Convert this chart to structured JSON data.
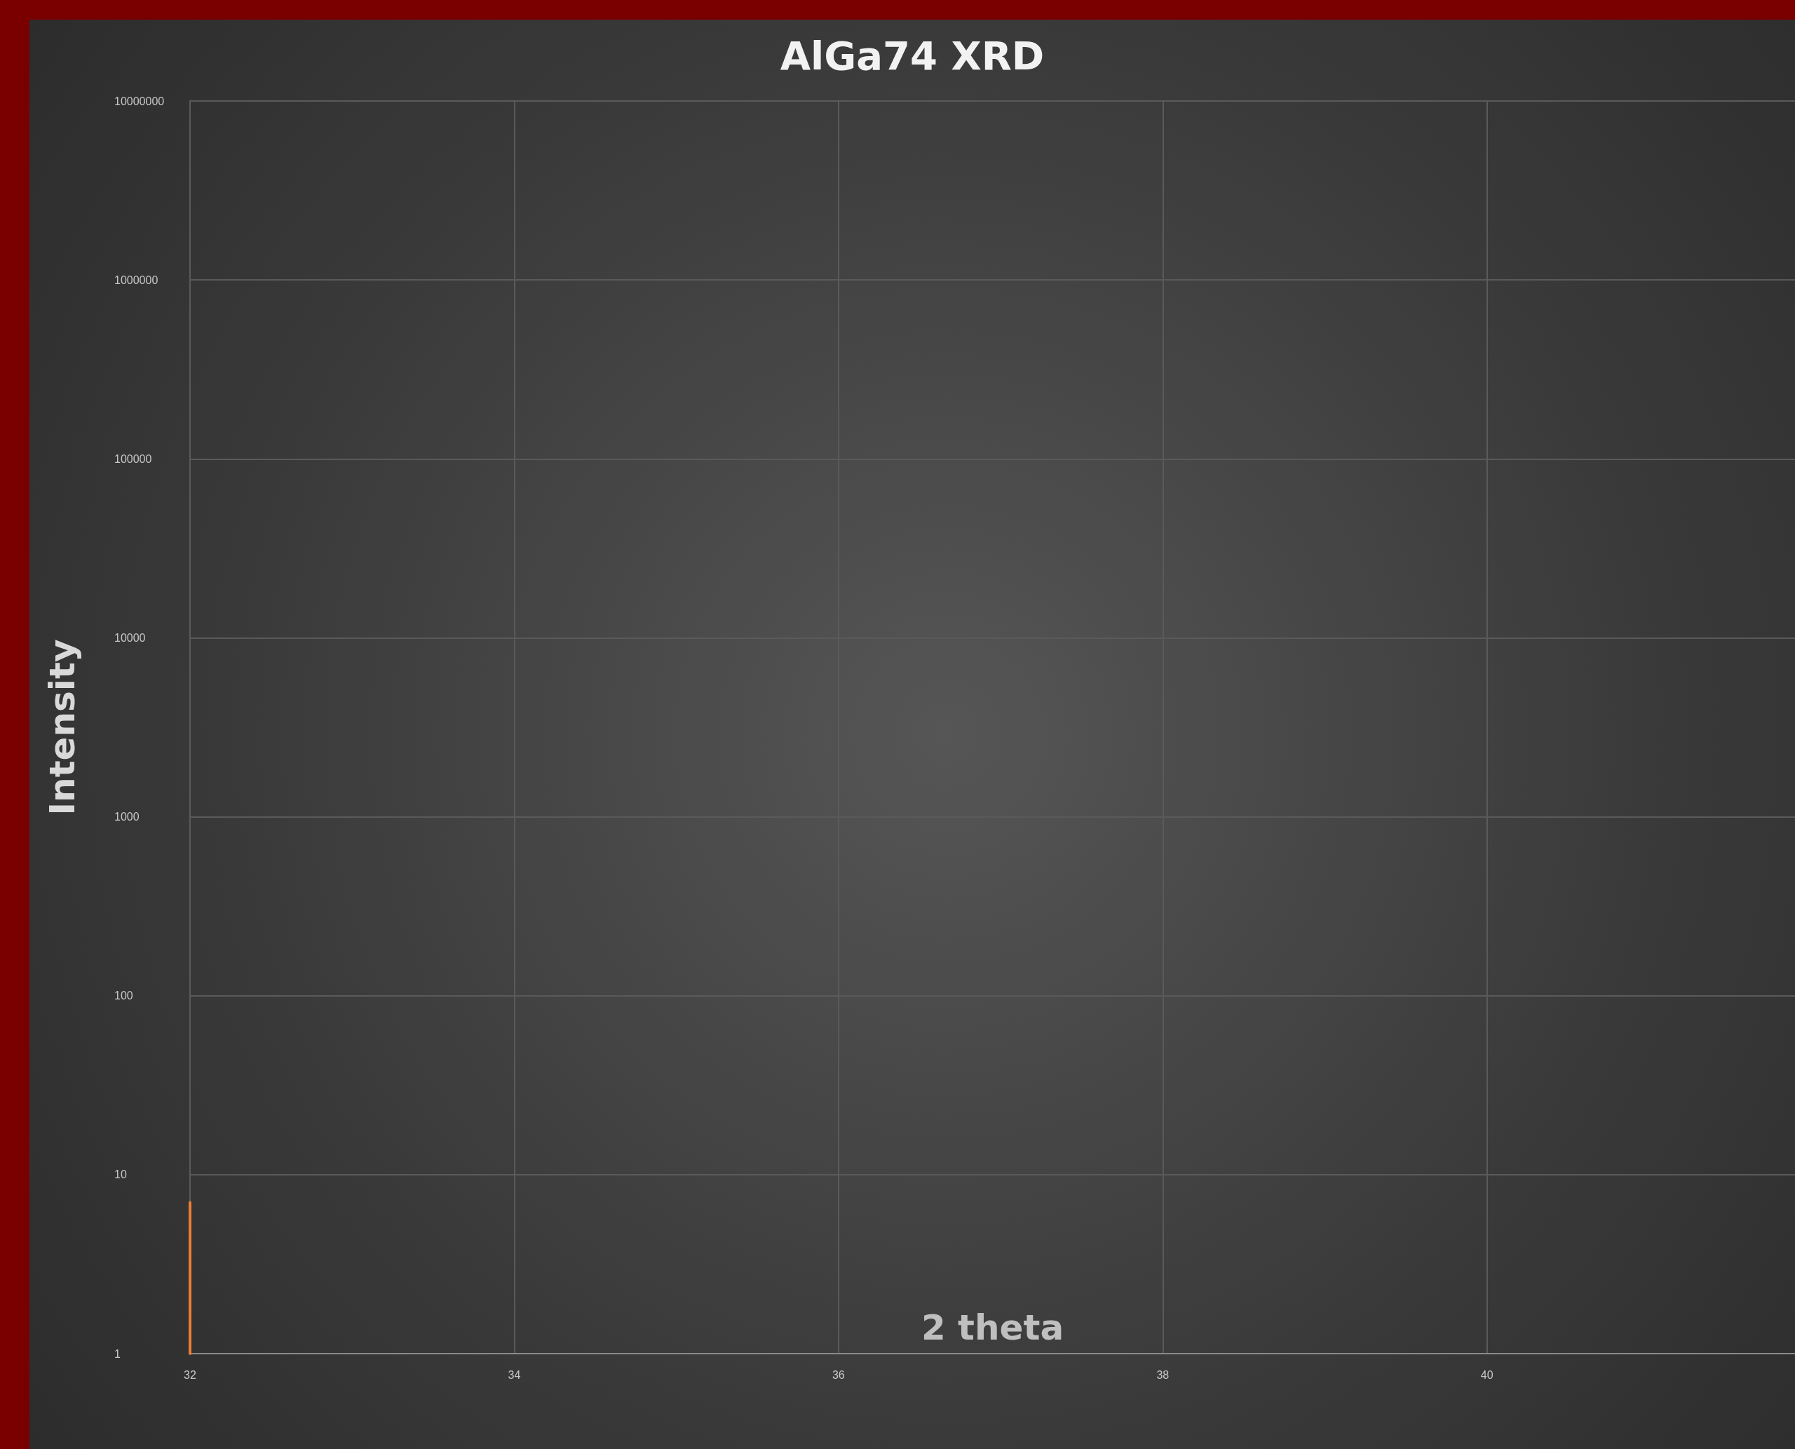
{
  "chart_data": {
    "type": "line",
    "title": "AlGa74 XRD",
    "xlabel": "2 theta",
    "ylabel": "Intensity",
    "series": [
      {
        "color": "#ed7d31",
        "x": [
          32,
          32
        ],
        "values": [
          1,
          7
        ]
      }
    ],
    "xlim": [
      32,
      41.9
    ],
    "xticks": [
      32,
      34,
      36,
      38,
      40
    ],
    "ylim": [
      1,
      10000000
    ],
    "yticks": [
      1,
      10,
      100,
      1000,
      10000,
      100000,
      1000000,
      10000000
    ],
    "log": "y",
    "grid": true,
    "marker": "none",
    "line_style": "solid"
  }
}
